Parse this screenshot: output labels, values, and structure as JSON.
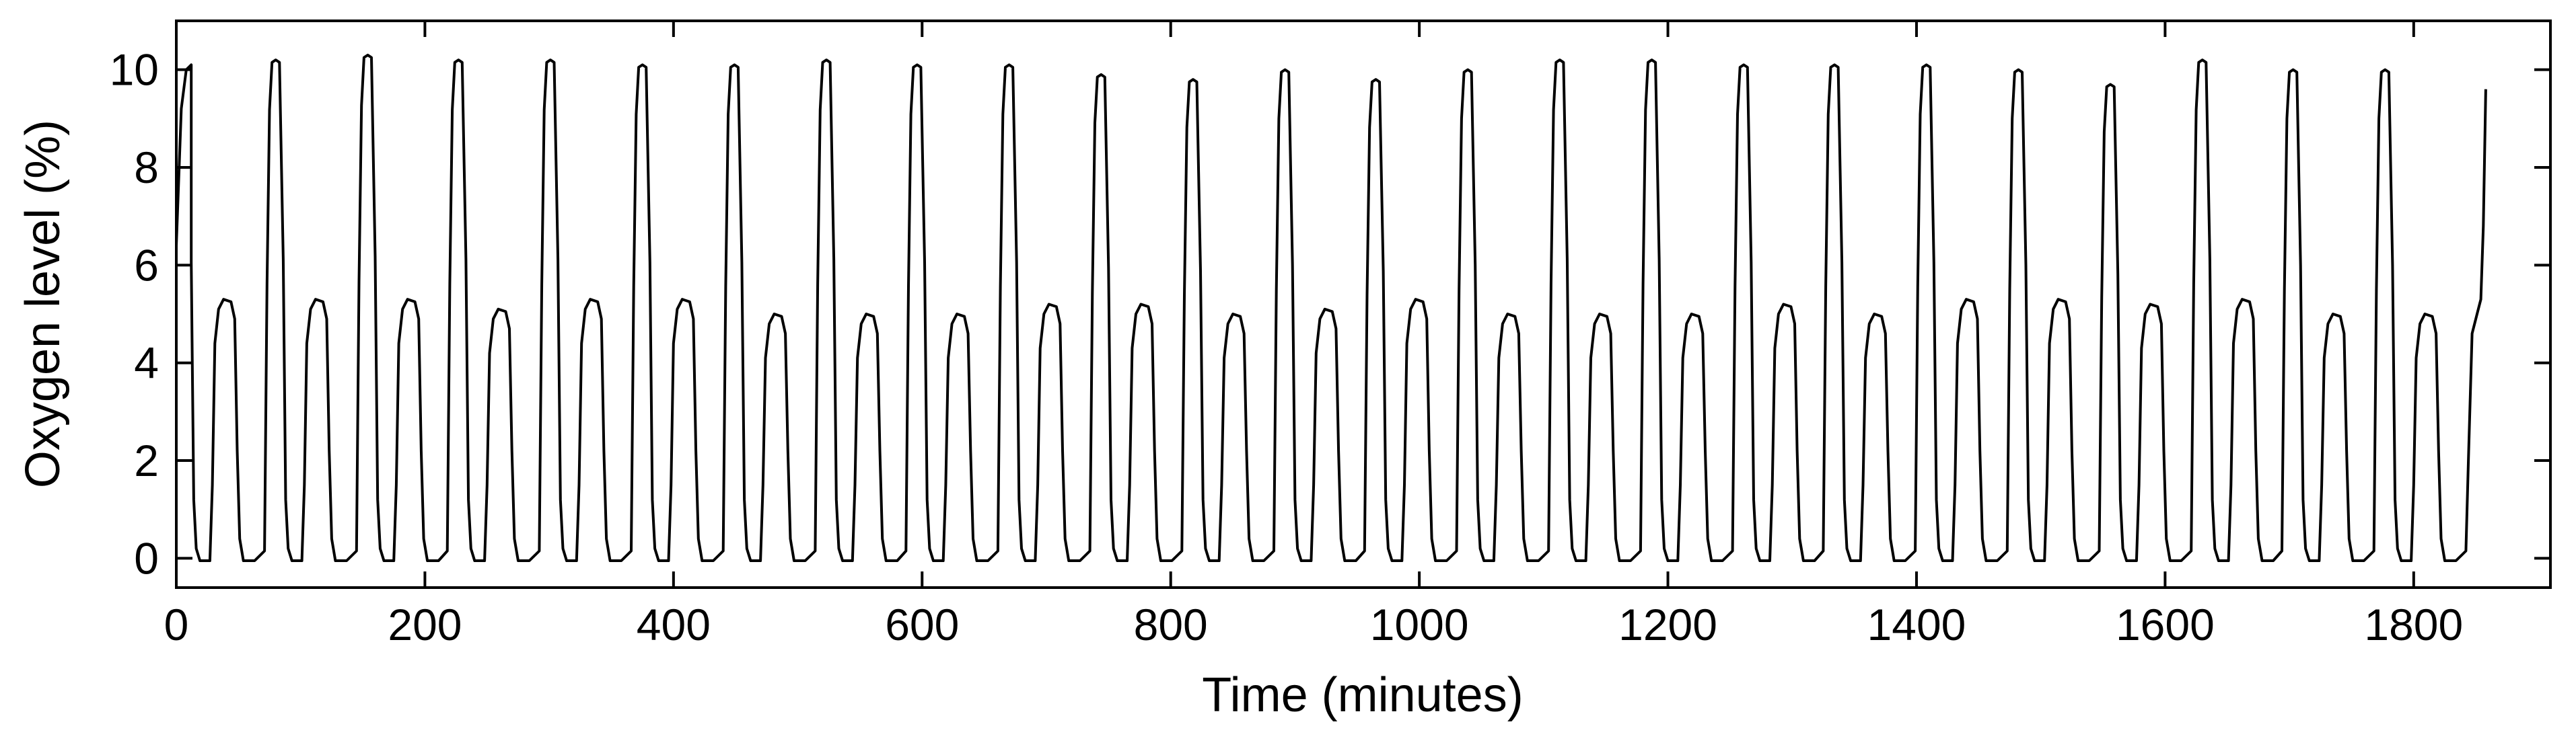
{
  "chart_data": {
    "type": "line",
    "xlabel": "Time (minutes)",
    "ylabel": "Oxygen level (%)",
    "xlim": [
      0,
      1910
    ],
    "ylim": [
      -0.6,
      11
    ],
    "x_ticks": [
      0,
      200,
      400,
      600,
      800,
      1000,
      1200,
      1400,
      1600,
      1800
    ],
    "y_ticks": [
      0,
      2,
      4,
      6,
      8,
      10
    ],
    "grid": false,
    "legend": "none",
    "line_color": "#000000",
    "series": [
      {
        "cycle_starts": [
          0,
          74,
          148,
          221,
          295,
          369,
          443,
          517,
          590,
          664,
          738,
          812,
          886,
          959,
          1033,
          1107,
          1181,
          1255,
          1328,
          1402,
          1476,
          1550,
          1624,
          1697,
          1771
        ],
        "peak_values": [
          10.1,
          10.2,
          10.3,
          10.2,
          10.2,
          10.1,
          10.1,
          10.2,
          10.1,
          10.1,
          9.9,
          9.8,
          10.0,
          9.8,
          10.0,
          10.2,
          10.2,
          10.1,
          10.1,
          10.1,
          10.0,
          9.7,
          10.2,
          10.0,
          10.0
        ],
        "plateau_values": [
          5.3,
          5.3,
          5.3,
          5.1,
          5.3,
          5.3,
          5.0,
          5.0,
          5.0,
          5.2,
          5.2,
          5.0,
          5.1,
          5.3,
          5.0,
          5.0,
          5.0,
          5.2,
          5.0,
          5.3,
          5.3,
          5.2,
          5.3,
          5.0,
          5.0
        ],
        "low_value": -0.05,
        "x_end": 1858,
        "y_end": 9.6
      }
    ]
  }
}
